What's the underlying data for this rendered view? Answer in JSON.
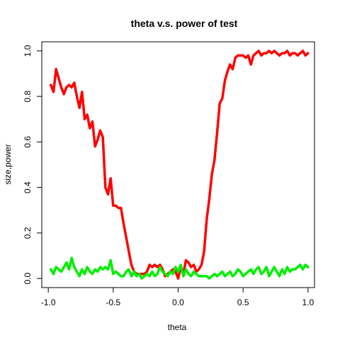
{
  "chart_data": {
    "type": "line",
    "title": "theta v.s. power of test",
    "xlabel": "theta",
    "ylabel": "size,power",
    "xlim": [
      -1.05,
      1.05
    ],
    "ylim": [
      -0.04,
      1.04
    ],
    "grid": false,
    "legend": "none",
    "x_ticks": [
      {
        "value": -1.0,
        "label": "-1.0"
      },
      {
        "value": -0.5,
        "label": "-0.5"
      },
      {
        "value": 0.0,
        "label": "0.0"
      },
      {
        "value": 0.5,
        "label": "0.5"
      },
      {
        "value": 1.0,
        "label": "1.0"
      }
    ],
    "y_ticks": [
      {
        "value": 0.0,
        "label": "0.0"
      },
      {
        "value": 0.2,
        "label": "0.2"
      },
      {
        "value": 0.4,
        "label": "0.4"
      },
      {
        "value": 0.6,
        "label": "0.6"
      },
      {
        "value": 0.8,
        "label": "0.8"
      },
      {
        "value": 1.0,
        "label": "1.0"
      }
    ],
    "series": [
      {
        "color": "#ff0000",
        "x": [
          -0.98,
          -0.96,
          -0.94,
          -0.92,
          -0.9,
          -0.88,
          -0.86,
          -0.84,
          -0.82,
          -0.8,
          -0.78,
          -0.76,
          -0.74,
          -0.72,
          -0.7,
          -0.68,
          -0.66,
          -0.64,
          -0.62,
          -0.6,
          -0.58,
          -0.56,
          -0.54,
          -0.52,
          -0.5,
          -0.48,
          -0.46,
          -0.44,
          -0.42,
          -0.4,
          -0.38,
          -0.36,
          -0.34,
          -0.32,
          -0.3,
          -0.28,
          -0.26,
          -0.24,
          -0.22,
          -0.2,
          -0.18,
          -0.16,
          -0.14,
          -0.12,
          -0.1,
          -0.08,
          -0.06,
          -0.04,
          -0.02,
          0.0,
          0.02,
          0.04,
          0.06,
          0.08,
          0.1,
          0.12,
          0.14,
          0.16,
          0.18,
          0.2,
          0.22,
          0.24,
          0.26,
          0.28,
          0.3,
          0.32,
          0.34,
          0.36,
          0.38,
          0.4,
          0.42,
          0.44,
          0.46,
          0.48,
          0.5,
          0.52,
          0.54,
          0.56,
          0.58,
          0.6,
          0.62,
          0.64,
          0.66,
          0.68,
          0.7,
          0.72,
          0.74,
          0.76,
          0.78,
          0.8,
          0.82,
          0.84,
          0.86,
          0.88,
          0.9,
          0.92,
          0.94,
          0.96,
          0.98,
          1.0
        ],
        "values": [
          0.85,
          0.82,
          0.92,
          0.88,
          0.84,
          0.81,
          0.84,
          0.85,
          0.84,
          0.86,
          0.8,
          0.75,
          0.82,
          0.7,
          0.72,
          0.66,
          0.69,
          0.58,
          0.61,
          0.65,
          0.62,
          0.4,
          0.37,
          0.44,
          0.32,
          0.32,
          0.31,
          0.31,
          0.24,
          0.18,
          0.12,
          0.06,
          0.03,
          0.02,
          0.02,
          0.02,
          0.02,
          0.03,
          0.06,
          0.05,
          0.06,
          0.05,
          0.06,
          0.04,
          0.01,
          0.02,
          0.03,
          0.04,
          0.03,
          0.0,
          0.05,
          0.02,
          0.08,
          0.07,
          0.05,
          0.06,
          0.03,
          0.04,
          0.06,
          0.12,
          0.26,
          0.35,
          0.46,
          0.52,
          0.64,
          0.77,
          0.79,
          0.87,
          0.91,
          0.94,
          0.92,
          0.97,
          0.98,
          0.98,
          0.98,
          0.97,
          0.98,
          0.94,
          0.98,
          0.99,
          1.0,
          0.98,
          0.99,
          0.99,
          1.0,
          0.99,
          1.0,
          0.99,
          0.98,
          0.99,
          0.99,
          1.0,
          0.98,
          0.99,
          0.99,
          0.98,
          0.99,
          1.0,
          0.98,
          0.99
        ]
      },
      {
        "color": "#00ee00",
        "x": [
          -0.98,
          -0.96,
          -0.94,
          -0.92,
          -0.9,
          -0.88,
          -0.86,
          -0.84,
          -0.82,
          -0.8,
          -0.78,
          -0.76,
          -0.74,
          -0.72,
          -0.7,
          -0.68,
          -0.66,
          -0.64,
          -0.62,
          -0.6,
          -0.58,
          -0.56,
          -0.54,
          -0.52,
          -0.5,
          -0.48,
          -0.46,
          -0.44,
          -0.42,
          -0.4,
          -0.38,
          -0.36,
          -0.34,
          -0.32,
          -0.3,
          -0.28,
          -0.26,
          -0.24,
          -0.22,
          -0.2,
          -0.18,
          -0.16,
          -0.14,
          -0.12,
          -0.1,
          -0.08,
          -0.06,
          -0.04,
          -0.02,
          0.0,
          0.02,
          0.04,
          0.06,
          0.08,
          0.1,
          0.12,
          0.14,
          0.16,
          0.18,
          0.2,
          0.22,
          0.24,
          0.26,
          0.28,
          0.3,
          0.32,
          0.34,
          0.36,
          0.38,
          0.4,
          0.42,
          0.44,
          0.46,
          0.48,
          0.5,
          0.52,
          0.54,
          0.56,
          0.58,
          0.6,
          0.62,
          0.64,
          0.66,
          0.68,
          0.7,
          0.72,
          0.74,
          0.76,
          0.78,
          0.8,
          0.82,
          0.84,
          0.86,
          0.88,
          0.9,
          0.92,
          0.94,
          0.96,
          0.98,
          1.0
        ],
        "values": [
          0.04,
          0.02,
          0.05,
          0.04,
          0.03,
          0.05,
          0.07,
          0.04,
          0.09,
          0.05,
          0.03,
          0.01,
          0.04,
          0.02,
          0.05,
          0.03,
          0.02,
          0.04,
          0.03,
          0.05,
          0.04,
          0.05,
          0.04,
          0.08,
          0.02,
          0.03,
          0.02,
          0.01,
          0.01,
          0.03,
          0.04,
          0.01,
          0.03,
          0.01,
          0.02,
          0.0,
          0.01,
          0.02,
          0.01,
          0.03,
          0.01,
          0.02,
          0.05,
          0.03,
          0.02,
          0.01,
          0.03,
          0.02,
          0.05,
          0.03,
          0.06,
          0.01,
          0.04,
          0.02,
          0.01,
          0.03,
          0.02,
          0.01,
          0.01,
          0.01,
          0.01,
          0.0,
          0.01,
          0.02,
          0.01,
          0.02,
          0.03,
          0.01,
          0.02,
          0.03,
          0.01,
          0.02,
          0.04,
          0.03,
          0.01,
          0.02,
          0.03,
          0.04,
          0.02,
          0.04,
          0.05,
          0.02,
          0.03,
          0.05,
          0.01,
          0.03,
          0.05,
          0.03,
          0.01,
          0.04,
          0.02,
          0.05,
          0.03,
          0.04,
          0.04,
          0.05,
          0.06,
          0.04,
          0.06,
          0.05
        ]
      }
    ]
  }
}
